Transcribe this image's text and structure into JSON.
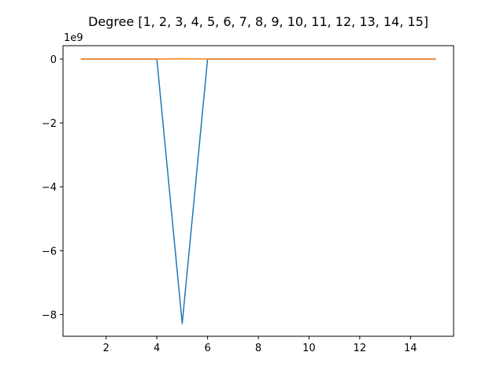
{
  "chart_data": {
    "type": "line",
    "title": "Degree [1, 2, 3, 4, 5, 6, 7, 8, 9, 10, 11, 12, 13, 14, 15]",
    "xlabel": "",
    "ylabel": "",
    "y_offset_label": "1e9",
    "xlim": [
      0.3,
      15.7
    ],
    "ylim": [
      -8.68,
      0.42
    ],
    "x_ticks": [
      2,
      4,
      6,
      8,
      10,
      12,
      14
    ],
    "x_tick_labels": [
      "2",
      "4",
      "6",
      "8",
      "10",
      "12",
      "14"
    ],
    "y_ticks": [
      0,
      -2,
      -4,
      -6,
      -8
    ],
    "y_tick_labels": [
      "0",
      "−2",
      "−4",
      "−6",
      "−8"
    ],
    "grid": false,
    "series": [
      {
        "color": "#1f77b4",
        "x": [
          1,
          2,
          3,
          4,
          5,
          6,
          7,
          8,
          9,
          10,
          11,
          12,
          13,
          14,
          15
        ],
        "y": [
          0,
          0,
          0,
          0,
          -8.28,
          0,
          0,
          0,
          0,
          0,
          0,
          0,
          0,
          0,
          0
        ]
      },
      {
        "color": "#ff7f0e",
        "x": [
          1,
          2,
          3,
          4,
          5,
          6,
          7,
          8,
          9,
          10,
          11,
          12,
          13,
          14,
          15
        ],
        "y": [
          0,
          0,
          0,
          0,
          0.01,
          0,
          0,
          0,
          0,
          0,
          0,
          0,
          0,
          0,
          0
        ]
      }
    ]
  }
}
